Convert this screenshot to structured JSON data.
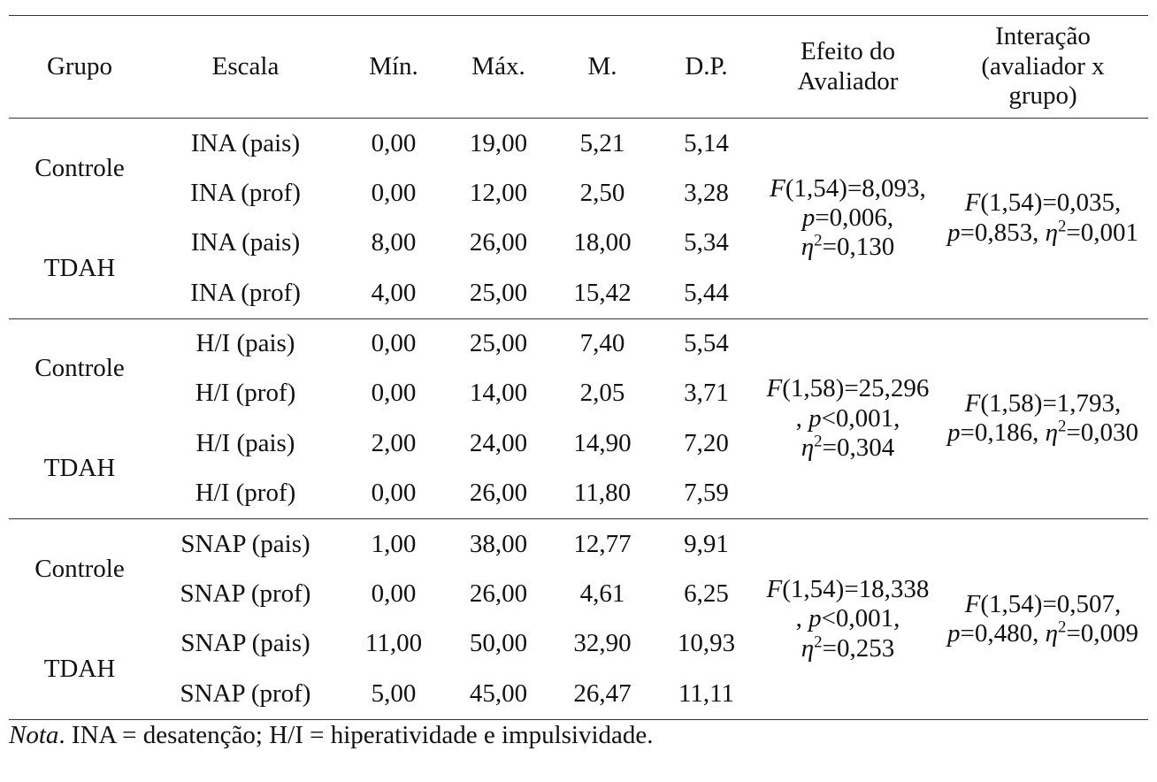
{
  "table": {
    "header": [
      "Grupo",
      "Escala",
      "Mín.",
      "Máx.",
      "M.",
      "D.P.",
      "Efeito do Avaliador",
      "Interação (avaliador x grupo)"
    ],
    "sections": [
      {
        "groups": [
          "Controle",
          "TDAH"
        ],
        "rows": [
          [
            "INA (pais)",
            "0,00",
            "19,00",
            "5,21",
            "5,14"
          ],
          [
            "INA (prof)",
            "0,00",
            "12,00",
            "2,50",
            "3,28"
          ],
          [
            "INA (pais)",
            "8,00",
            "26,00",
            "18,00",
            "5,34"
          ],
          [
            "INA (prof)",
            "4,00",
            "25,00",
            "15,42",
            "5,44"
          ]
        ],
        "effect": [
          "F",
          "(1,54)=8,093, ",
          "p",
          "=0,006, ",
          "η",
          "2",
          "=0,130"
        ],
        "interaction": [
          "F",
          "(1,54)=0,035, ",
          "p",
          "=0,853, ",
          "η",
          "2",
          "=0,001"
        ]
      },
      {
        "groups": [
          "Controle",
          "TDAH"
        ],
        "rows": [
          [
            "H/I (pais)",
            "0,00",
            "25,00",
            "7,40",
            "5,54"
          ],
          [
            "H/I (prof)",
            "0,00",
            "14,00",
            "2,05",
            "3,71"
          ],
          [
            "H/I (pais)",
            "2,00",
            "24,00",
            "14,90",
            "7,20"
          ],
          [
            "H/I (prof)",
            "0,00",
            "26,00",
            "11,80",
            "7,59"
          ]
        ],
        "effect": [
          "F",
          "(1,58)=25,296, ",
          "p",
          "<0,001, ",
          "η",
          "2",
          "=0,304"
        ],
        "interaction": [
          "F",
          "(1,58)=1,793, ",
          "p",
          "=0,186, ",
          "η",
          "2",
          "=0,030"
        ]
      },
      {
        "groups": [
          "Controle",
          "TDAH"
        ],
        "rows": [
          [
            "SNAP (pais)",
            "1,00",
            "38,00",
            "12,77",
            "9,91"
          ],
          [
            "SNAP (prof)",
            "0,00",
            "26,00",
            "4,61",
            "6,25"
          ],
          [
            "SNAP (pais)",
            "11,00",
            "50,00",
            "32,90",
            "10,93"
          ],
          [
            "SNAP (prof)",
            "5,00",
            "45,00",
            "26,47",
            "11,11"
          ]
        ],
        "effect": [
          "F",
          "(1,54)=18,338, ",
          "p",
          "<0,001, ",
          "η",
          "2",
          "=0,253"
        ],
        "interaction": [
          "F",
          "(1,54)=0,507, ",
          "p",
          "=0,480, ",
          "η",
          "2",
          "=0,009"
        ]
      }
    ]
  },
  "note": {
    "label": "Nota",
    "text": ". INA = desatenção; H/I = hiperatividade e impulsividade."
  }
}
